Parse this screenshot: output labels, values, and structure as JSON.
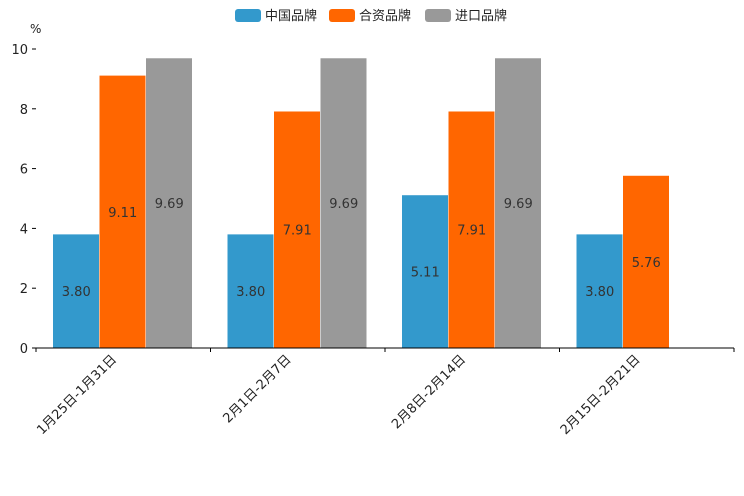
{
  "chart_data": {
    "type": "bar",
    "title": "",
    "xlabel": "",
    "ylabel": "%",
    "ylim": [
      0,
      10
    ],
    "yticks": [
      0,
      2,
      4,
      6,
      8,
      10
    ],
    "grid": false,
    "legend_position": "top-center",
    "categories": [
      "1月25日-1月31日",
      "2月1日-2月7日",
      "2月8日-2月14日",
      "2月15日-2月21日"
    ],
    "series": [
      {
        "name": "中国品牌",
        "color": "#3399cc",
        "values": [
          3.8,
          3.8,
          5.11,
          3.8
        ],
        "labels": [
          "3.80",
          "3.80",
          "5.11",
          "3.80"
        ]
      },
      {
        "name": "合资品牌",
        "color": "#ff6600",
        "values": [
          9.11,
          7.91,
          7.91,
          5.76
        ],
        "labels": [
          "9.11",
          "7.91",
          "7.91",
          "5.76"
        ]
      },
      {
        "name": "进口品牌",
        "color": "#999999",
        "values": [
          9.69,
          9.69,
          9.69,
          null
        ],
        "labels": [
          "9.69",
          "9.69",
          "9.69",
          null
        ]
      }
    ]
  }
}
